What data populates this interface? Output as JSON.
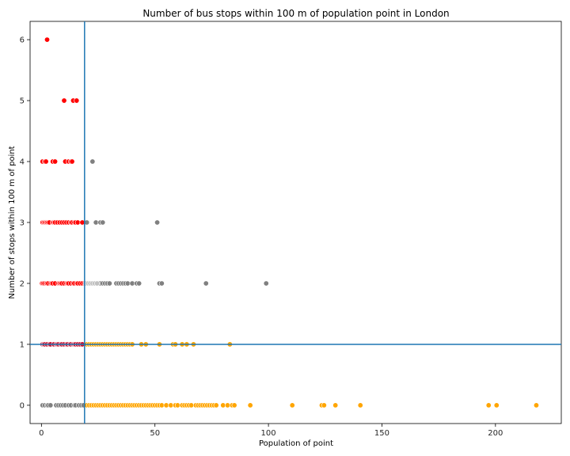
{
  "chart_data": {
    "type": "scatter",
    "title": "Number of bus stops within 100 m of population point in London",
    "xlabel": "Population of point",
    "ylabel": "Number of stops within 100 m of point",
    "xlim": [
      -5,
      229
    ],
    "ylim": [
      -0.3,
      6.3
    ],
    "xticks": [
      0,
      50,
      100,
      150,
      200
    ],
    "yticks": [
      0,
      1,
      2,
      3,
      4,
      5,
      6
    ],
    "reference_lines": {
      "vertical_x": 19,
      "horizontal_y": 1,
      "color": "#1f77b4"
    },
    "colors": {
      "red": "#ff0000",
      "crimson": "#c8102e",
      "gray": "#808080",
      "lightgray": "#c0c0c0",
      "orange": "#ffa500"
    },
    "series": [
      {
        "color": "red",
        "points": [
          [
            2.5,
            6
          ],
          [
            10,
            5
          ],
          [
            14,
            5
          ],
          [
            15.5,
            5
          ],
          [
            0.5,
            4
          ],
          [
            1.5,
            4
          ],
          [
            2,
            4
          ],
          [
            5,
            4
          ],
          [
            6,
            4
          ],
          [
            10.5,
            4
          ],
          [
            12,
            4
          ],
          [
            13,
            4
          ],
          [
            13.5,
            4
          ],
          [
            0.5,
            3
          ],
          [
            1,
            3
          ],
          [
            1.5,
            3
          ],
          [
            2,
            3
          ],
          [
            2.5,
            3
          ],
          [
            3,
            3
          ],
          [
            3.5,
            3
          ],
          [
            5,
            3
          ],
          [
            5.5,
            3
          ],
          [
            6,
            3
          ],
          [
            7,
            3
          ],
          [
            8,
            3
          ],
          [
            9,
            3
          ],
          [
            10,
            3
          ],
          [
            11,
            3
          ],
          [
            12,
            3
          ],
          [
            13,
            3
          ],
          [
            13.5,
            3
          ],
          [
            14.5,
            3
          ],
          [
            15,
            3
          ],
          [
            16,
            3
          ],
          [
            18,
            3
          ],
          [
            0.3,
            2
          ],
          [
            0.8,
            2
          ],
          [
            1.3,
            2
          ],
          [
            2,
            2
          ],
          [
            2.5,
            2
          ],
          [
            3,
            2
          ],
          [
            4,
            2
          ],
          [
            4.5,
            2
          ],
          [
            5,
            2
          ],
          [
            6,
            2
          ],
          [
            7.5,
            2
          ],
          [
            8,
            2
          ],
          [
            8.5,
            2
          ],
          [
            9,
            2
          ],
          [
            10,
            2
          ],
          [
            11,
            2
          ],
          [
            11.5,
            2
          ],
          [
            12,
            2
          ],
          [
            13,
            2
          ],
          [
            14,
            2
          ],
          [
            14.5,
            2
          ],
          [
            15.5,
            2
          ],
          [
            16,
            2
          ],
          [
            17,
            2
          ],
          [
            18,
            2
          ],
          [
            19,
            2
          ]
        ]
      },
      {
        "color": "crimson",
        "points": [
          [
            0.5,
            1
          ],
          [
            1,
            1
          ],
          [
            1.5,
            1
          ],
          [
            2.5,
            1
          ],
          [
            3.5,
            1
          ],
          [
            4,
            1
          ],
          [
            5.5,
            1
          ],
          [
            6.5,
            1
          ],
          [
            7,
            1
          ],
          [
            7.5,
            1
          ],
          [
            8.5,
            1
          ],
          [
            9,
            1
          ],
          [
            10,
            1
          ],
          [
            11,
            1
          ],
          [
            11.5,
            1
          ],
          [
            12.5,
            1
          ],
          [
            13,
            1
          ],
          [
            14,
            1
          ],
          [
            14.5,
            1
          ],
          [
            15,
            1
          ],
          [
            16,
            1
          ],
          [
            17,
            1
          ],
          [
            18,
            1
          ]
        ]
      },
      {
        "color": "gray",
        "points": [
          [
            22.5,
            4
          ],
          [
            51,
            3
          ],
          [
            20,
            3
          ],
          [
            24,
            3
          ],
          [
            26,
            3
          ],
          [
            27,
            3
          ],
          [
            20,
            2
          ],
          [
            21,
            2
          ],
          [
            22,
            2
          ],
          [
            23,
            2
          ],
          [
            24,
            2
          ],
          [
            25,
            2
          ],
          [
            26,
            2
          ],
          [
            27,
            2
          ],
          [
            28,
            2
          ],
          [
            29,
            2
          ],
          [
            30,
            2
          ],
          [
            33,
            2
          ],
          [
            34,
            2
          ],
          [
            35,
            2
          ],
          [
            36,
            2
          ],
          [
            37,
            2
          ],
          [
            38,
            2
          ],
          [
            40,
            2
          ],
          [
            42,
            2
          ],
          [
            43,
            2
          ],
          [
            52,
            2
          ],
          [
            53,
            2
          ],
          [
            72.5,
            2
          ],
          [
            99,
            2
          ],
          [
            0.5,
            0
          ],
          [
            1.5,
            0
          ],
          [
            2.5,
            0
          ],
          [
            3,
            0
          ],
          [
            4,
            0
          ],
          [
            6.5,
            0
          ],
          [
            7.5,
            0
          ],
          [
            8.5,
            0
          ],
          [
            9.5,
            0
          ],
          [
            10.5,
            0
          ],
          [
            12,
            0
          ],
          [
            13,
            0
          ],
          [
            14.5,
            0
          ],
          [
            15,
            0
          ],
          [
            16.5,
            0
          ],
          [
            17.5,
            0
          ],
          [
            18.5,
            0
          ]
        ]
      },
      {
        "color": "lightgray",
        "points": [
          [
            19.5,
            2
          ],
          [
            20.5,
            2
          ],
          [
            21.5,
            2
          ],
          [
            22.5,
            2
          ],
          [
            23.5,
            2
          ],
          [
            24.5,
            2
          ]
        ]
      },
      {
        "color": "orange",
        "points": [
          [
            20,
            1
          ],
          [
            21,
            1
          ],
          [
            22,
            1
          ],
          [
            23,
            1
          ],
          [
            24,
            1
          ],
          [
            25,
            1
          ],
          [
            26,
            1
          ],
          [
            27,
            1
          ],
          [
            28,
            1
          ],
          [
            29,
            1
          ],
          [
            30,
            1
          ],
          [
            31,
            1
          ],
          [
            32,
            1
          ],
          [
            33,
            1
          ],
          [
            34,
            1
          ],
          [
            35,
            1
          ],
          [
            36,
            1
          ],
          [
            37,
            1
          ],
          [
            38,
            1
          ],
          [
            39,
            1
          ],
          [
            40,
            1
          ],
          [
            44,
            1
          ],
          [
            46,
            1
          ],
          [
            52,
            1
          ],
          [
            58,
            1
          ],
          [
            59,
            1
          ],
          [
            62,
            1
          ],
          [
            64,
            1
          ],
          [
            67,
            1
          ],
          [
            83,
            1
          ],
          [
            20,
            0
          ],
          [
            21,
            0
          ],
          [
            22,
            0
          ],
          [
            23,
            0
          ],
          [
            24,
            0
          ],
          [
            25,
            0
          ],
          [
            26,
            0
          ],
          [
            27,
            0
          ],
          [
            28,
            0
          ],
          [
            29,
            0
          ],
          [
            30,
            0
          ],
          [
            31,
            0
          ],
          [
            32,
            0
          ],
          [
            33,
            0
          ],
          [
            34,
            0
          ],
          [
            35,
            0
          ],
          [
            36,
            0
          ],
          [
            37,
            0
          ],
          [
            38,
            0
          ],
          [
            39,
            0
          ],
          [
            40,
            0
          ],
          [
            41,
            0
          ],
          [
            42,
            0
          ],
          [
            43,
            0
          ],
          [
            44,
            0
          ],
          [
            45,
            0
          ],
          [
            46,
            0
          ],
          [
            47,
            0
          ],
          [
            48,
            0
          ],
          [
            49,
            0
          ],
          [
            50,
            0
          ],
          [
            51,
            0
          ],
          [
            52,
            0
          ],
          [
            53,
            0
          ],
          [
            55,
            0
          ],
          [
            57,
            0
          ],
          [
            59,
            0
          ],
          [
            60,
            0
          ],
          [
            62,
            0
          ],
          [
            63,
            0
          ],
          [
            64,
            0
          ],
          [
            65,
            0
          ],
          [
            66,
            0
          ],
          [
            68,
            0
          ],
          [
            69,
            0
          ],
          [
            70,
            0
          ],
          [
            71,
            0
          ],
          [
            72,
            0
          ],
          [
            73,
            0
          ],
          [
            74,
            0
          ],
          [
            75,
            0
          ],
          [
            76,
            0
          ],
          [
            77,
            0
          ],
          [
            80,
            0
          ],
          [
            82,
            0
          ],
          [
            84,
            0
          ],
          [
            85,
            0
          ],
          [
            92,
            0
          ],
          [
            110.5,
            0
          ],
          [
            123.5,
            0
          ],
          [
            124.5,
            0
          ],
          [
            129.5,
            0
          ],
          [
            140.5,
            0
          ],
          [
            197,
            0
          ],
          [
            200.5,
            0
          ],
          [
            218,
            0
          ]
        ]
      }
    ]
  }
}
